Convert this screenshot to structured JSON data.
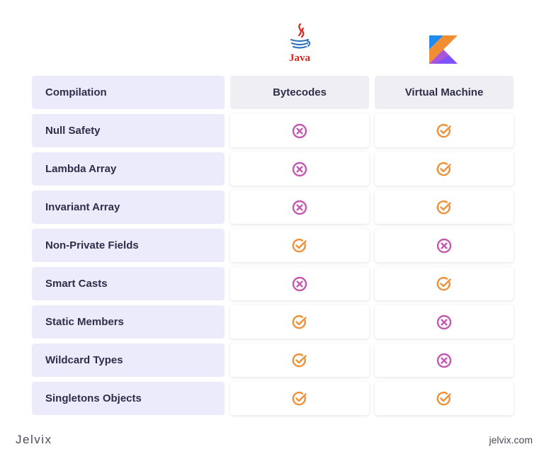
{
  "logos": {
    "java_text": "Java"
  },
  "header": {
    "label": "Compilation",
    "java": "Bytecodes",
    "kotlin": "Virtual Machine"
  },
  "rows": [
    {
      "label": "Null Safety",
      "java": "cross",
      "kotlin": "check"
    },
    {
      "label": "Lambda Array",
      "java": "cross",
      "kotlin": "check"
    },
    {
      "label": "Invariant Array",
      "java": "cross",
      "kotlin": "check"
    },
    {
      "label": "Non-Private Fields",
      "java": "check",
      "kotlin": "cross"
    },
    {
      "label": "Smart Casts",
      "java": "cross",
      "kotlin": "check"
    },
    {
      "label": "Static Members",
      "java": "check",
      "kotlin": "cross"
    },
    {
      "label": "Wildcard Types",
      "java": "check",
      "kotlin": "cross"
    },
    {
      "label": "Singletons Objects",
      "java": "check",
      "kotlin": "check"
    }
  ],
  "colors": {
    "check": "#f0913a",
    "cross": "#c35ab0",
    "label_bg": "#ecebfb"
  },
  "footer": {
    "brand": "Jelvix",
    "url": "jelvix.com"
  }
}
